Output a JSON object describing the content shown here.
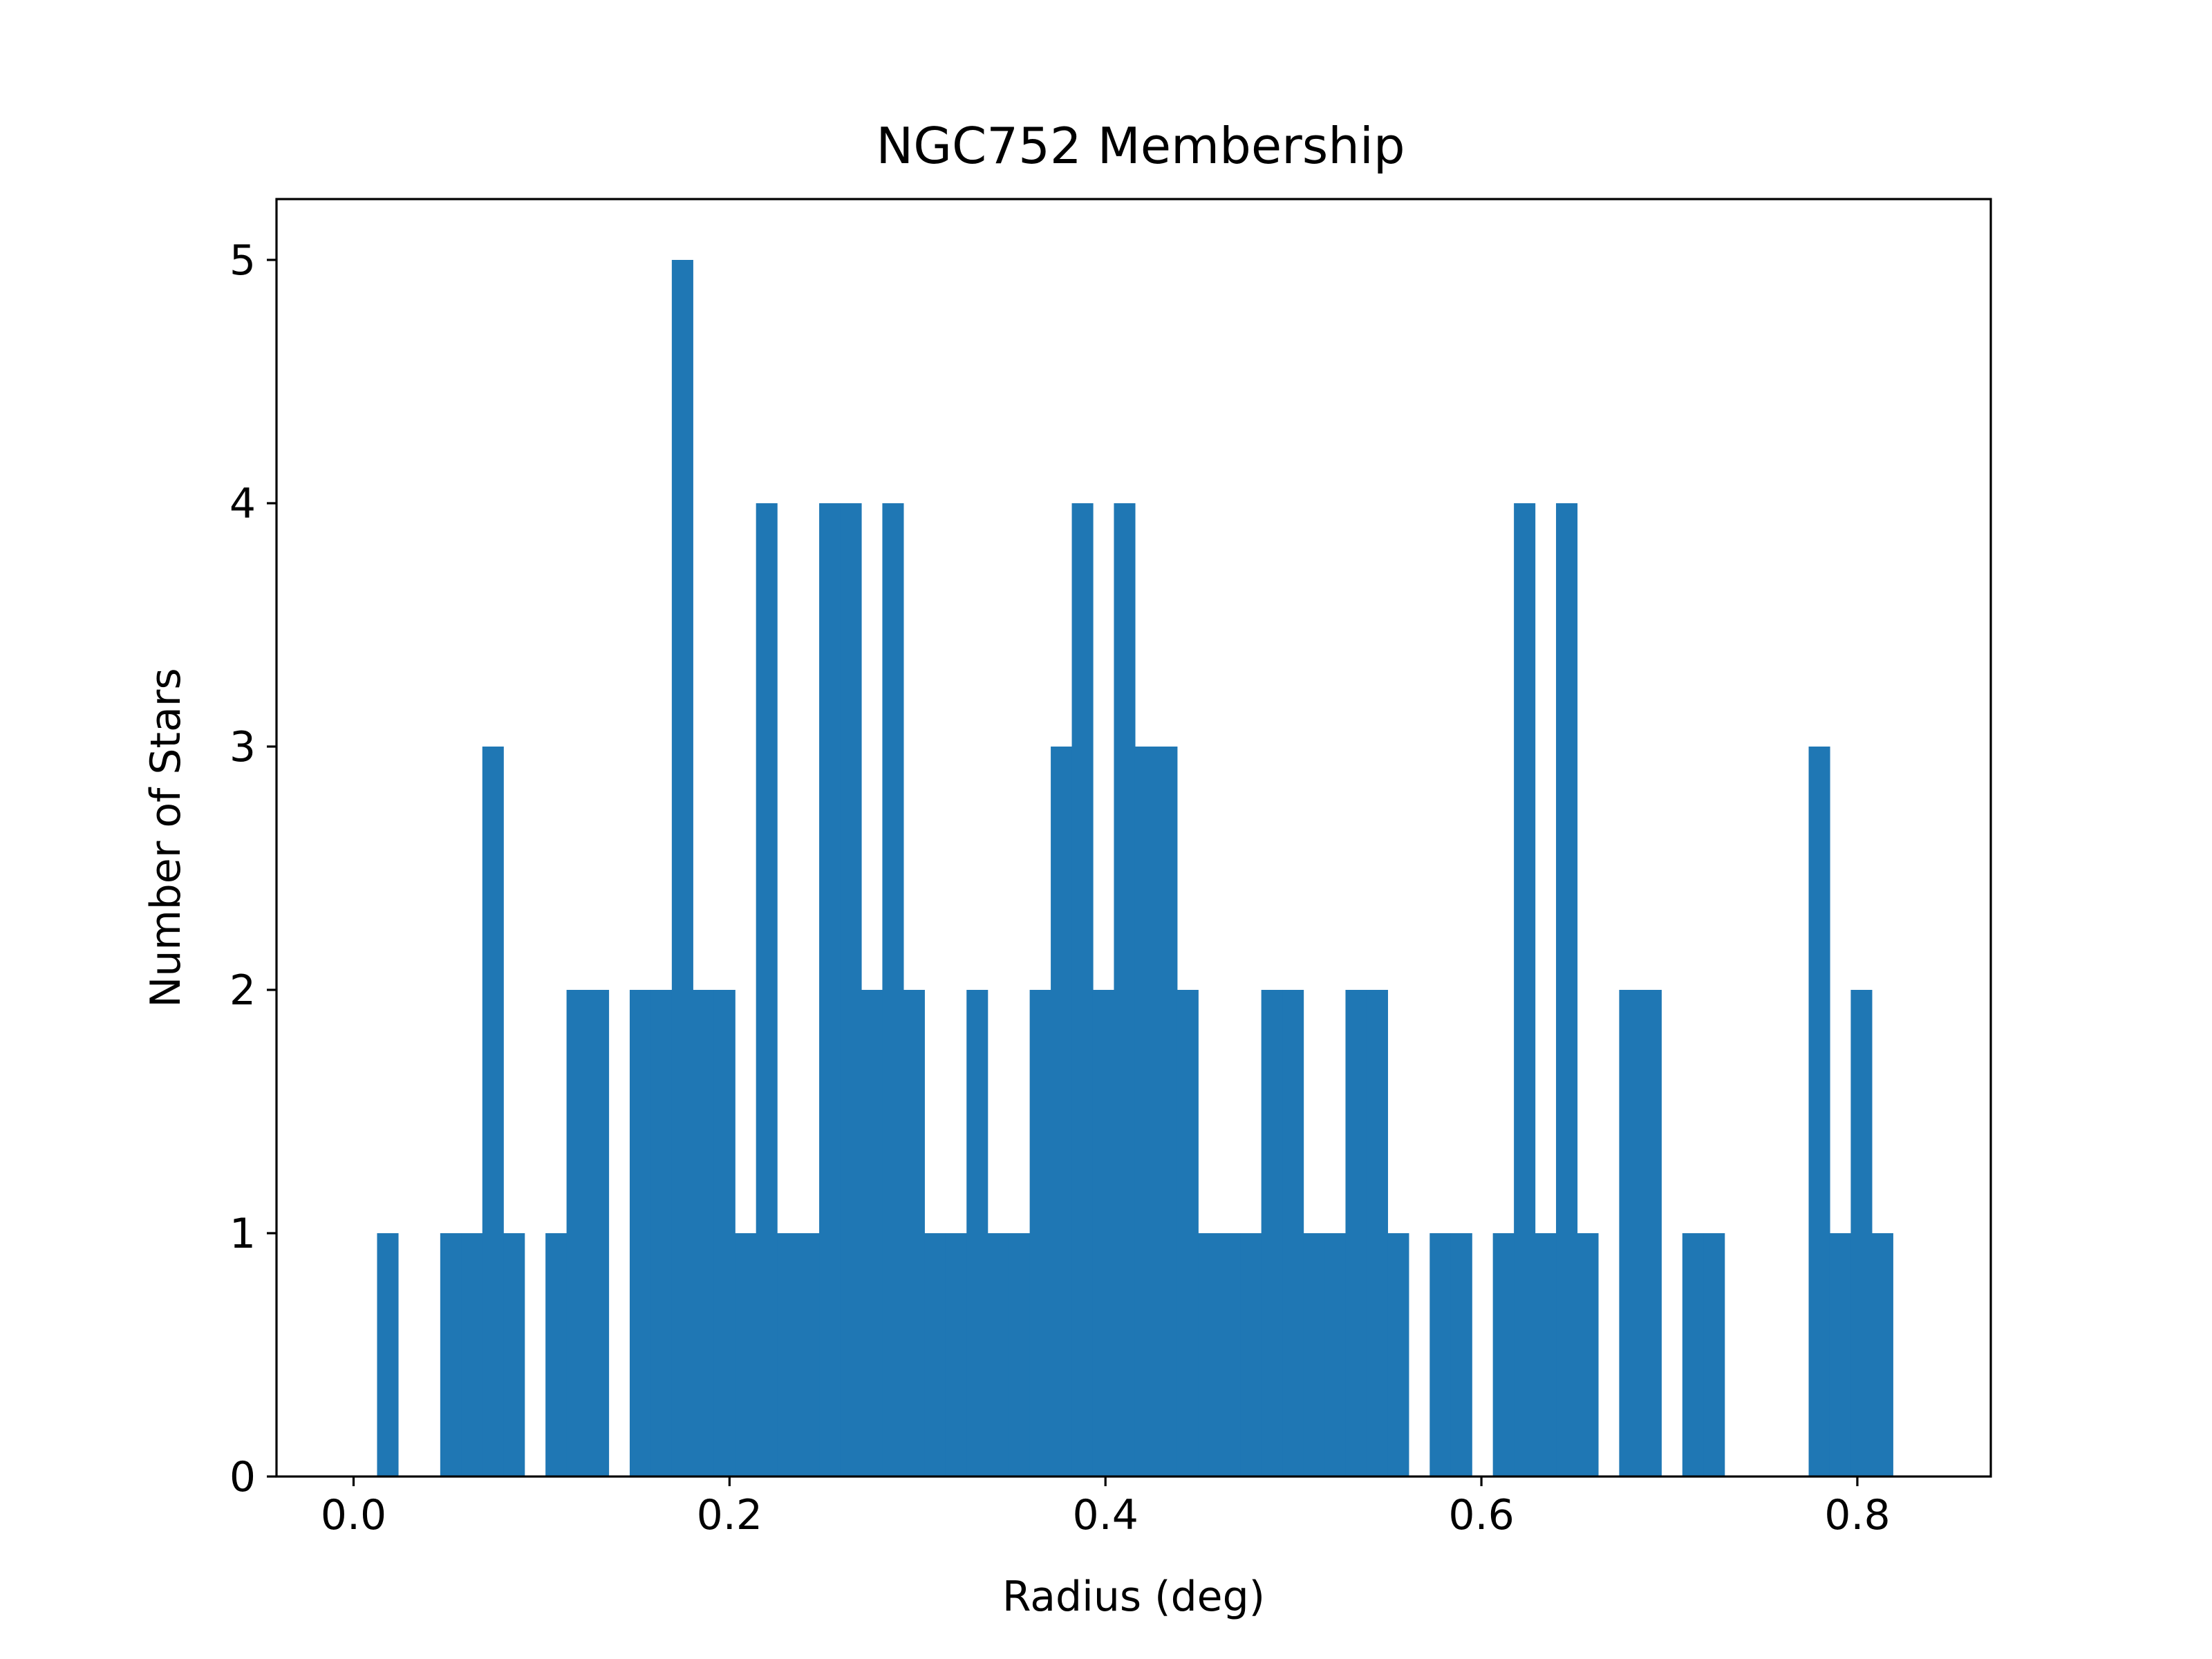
{
  "chart_data": {
    "type": "bar",
    "title": "NGC752 Membership",
    "xlabel": "Radius (deg)",
    "ylabel": "Number of Stars",
    "xlim": [
      -0.041,
      0.871
    ],
    "ylim": [
      0,
      5.25
    ],
    "xticks": [
      0.0,
      0.2,
      0.4,
      0.6,
      0.8
    ],
    "xtick_labels": [
      "0.0",
      "0.2",
      "0.4",
      "0.6",
      "0.8"
    ],
    "yticks": [
      0,
      1,
      2,
      3,
      4,
      5
    ],
    "ytick_labels": [
      "0",
      "1",
      "2",
      "3",
      "4",
      "5"
    ],
    "grid": false,
    "color": "#1f77b4",
    "bin_start": 0.0013,
    "bin_width": 0.0112,
    "counts": [
      0,
      1,
      0,
      0,
      1,
      1,
      3,
      1,
      0,
      1,
      2,
      2,
      0,
      2,
      2,
      5,
      2,
      2,
      1,
      4,
      1,
      1,
      4,
      4,
      2,
      4,
      2,
      1,
      1,
      2,
      1,
      1,
      2,
      3,
      4,
      2,
      4,
      3,
      3,
      2,
      1,
      1,
      1,
      2,
      2,
      1,
      1,
      2,
      2,
      1,
      0,
      1,
      1,
      0,
      1,
      4,
      1,
      4,
      1,
      0,
      2,
      2,
      0,
      1,
      1,
      0,
      0,
      0,
      0,
      3,
      1,
      2,
      1
    ]
  }
}
